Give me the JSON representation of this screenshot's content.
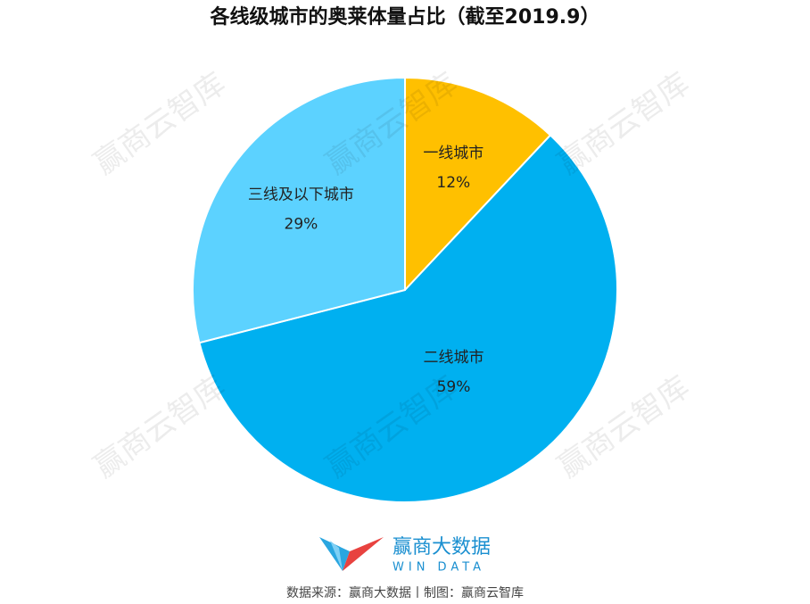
{
  "chart_data": {
    "type": "pie",
    "title": "各线级城市的奥莱体量占比（截至2019.9）",
    "categories": [
      "一线城市",
      "二线城市",
      "三线及以下城市"
    ],
    "values": [
      12,
      59,
      29
    ],
    "value_labels": [
      "12%",
      "59%",
      "29%"
    ],
    "colors": [
      "#FFC000",
      "#00B0F0",
      "#5CD2FF"
    ]
  },
  "watermark": "赢商云智库",
  "logo": {
    "name": "赢商大数据",
    "subtitle": "WIN DATA"
  },
  "source": "数据来源：赢商大数据丨制图：赢商云智库"
}
